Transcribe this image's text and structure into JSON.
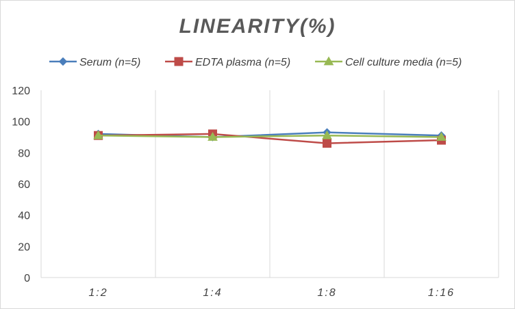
{
  "chart_data": {
    "type": "line",
    "title": "LINEARITY(%)",
    "xlabel": "",
    "ylabel": "",
    "categories": [
      "1:2",
      "1:4",
      "1:8",
      "1:16"
    ],
    "ylim": [
      0,
      120
    ],
    "yticks": [
      0,
      20,
      40,
      60,
      80,
      100,
      120
    ],
    "grid": "vertical",
    "legend_position": "top",
    "series": [
      {
        "name": "Serum (n=5)",
        "values": [
          92,
          90,
          93,
          91
        ],
        "color": "#4a7ebb",
        "marker": "diamond"
      },
      {
        "name": "EDTA plasma (n=5)",
        "values": [
          91,
          92,
          86,
          88
        ],
        "color": "#be4b48",
        "marker": "square"
      },
      {
        "name": "Cell culture media (n=5)",
        "values": [
          91,
          90,
          91,
          90
        ],
        "color": "#98b954",
        "marker": "triangle"
      }
    ]
  }
}
